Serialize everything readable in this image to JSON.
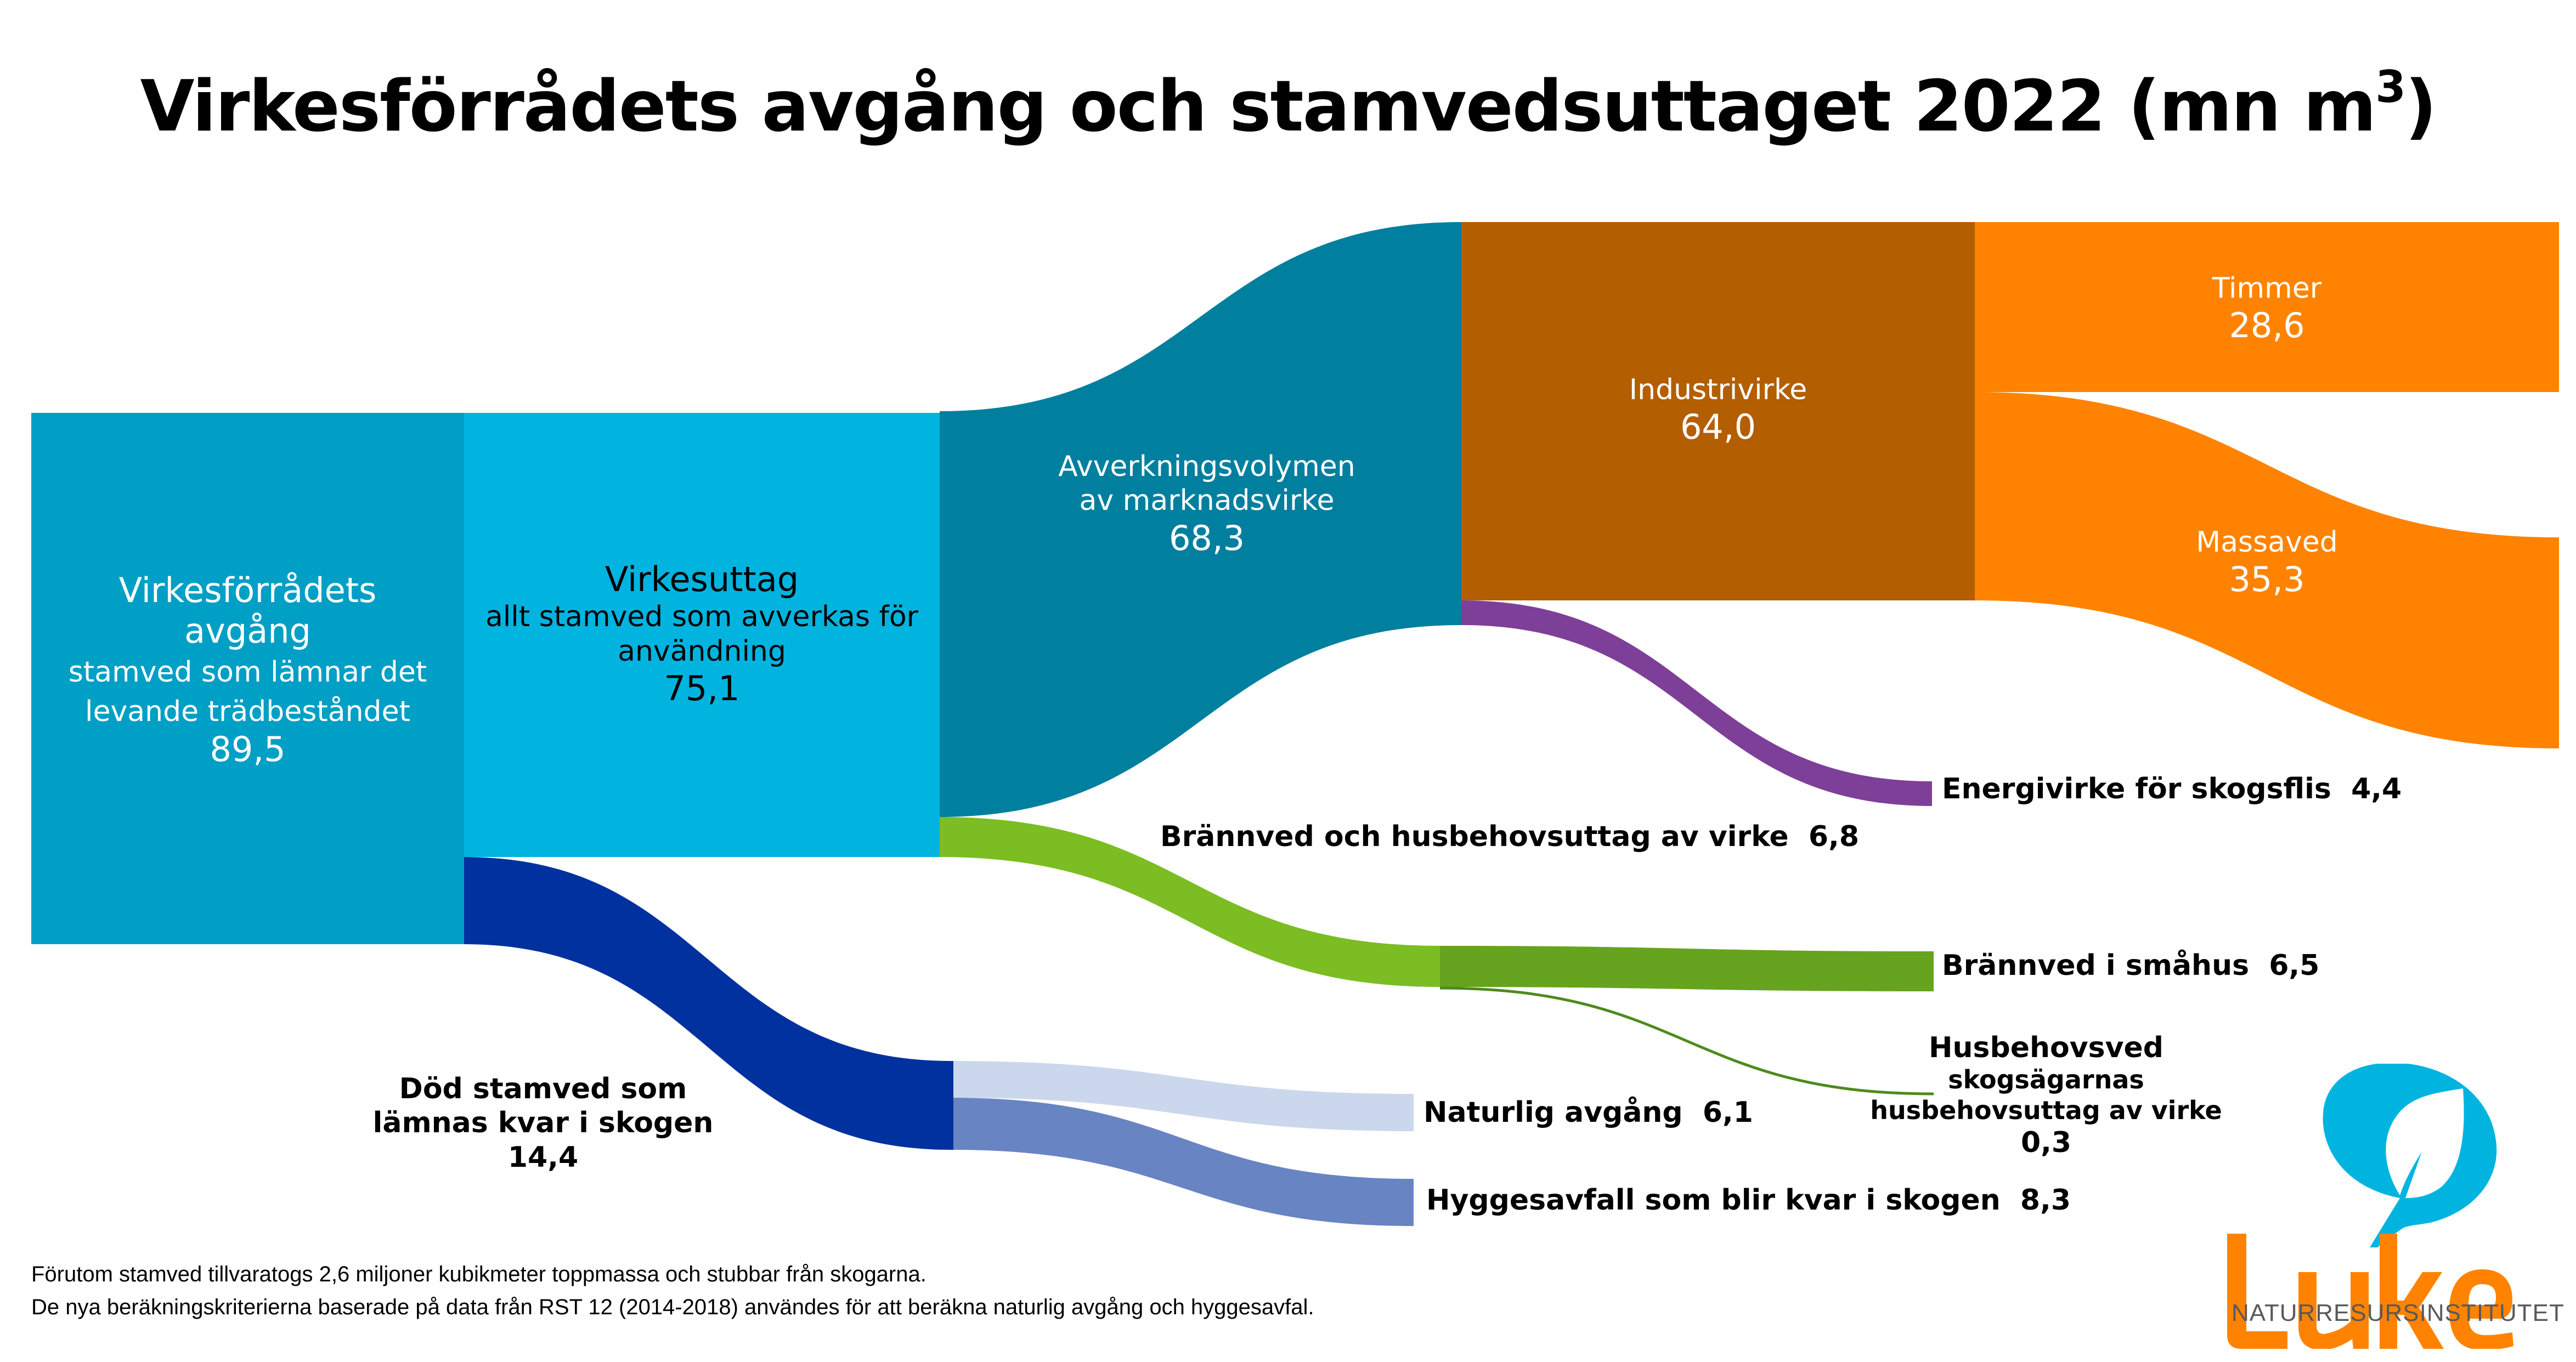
{
  "title": {
    "text": "Virkesförrådets avgång och stamvedsuttaget 2022 (mn m",
    "superscript": "3",
    "closing": ")"
  },
  "chart_data": {
    "type": "sankey",
    "title": "Virkesförrådets avgång och stamvedsuttaget 2022 (mn m³)",
    "unit": "mn m³",
    "nodes": [
      {
        "id": "avgang",
        "label": "Virkesförrådets avgång",
        "sublabel": "stamved som lämnar det levande trädbeståndet",
        "value": 89.5,
        "value_text": "89,5",
        "color": "#009FC6"
      },
      {
        "id": "virkesuttag",
        "label": "Virkesuttag",
        "sublabel": "allt stamved som avverkas för användning",
        "value": 75.1,
        "value_text": "75,1",
        "color": "#00B4E0"
      },
      {
        "id": "avverkning",
        "label": "Avverkningsvolymen av marknadsvirke",
        "value": 68.3,
        "value_text": "68,3",
        "color": "#007F9E"
      },
      {
        "id": "industrivirke",
        "label": "Industrivirke",
        "value": 64.0,
        "value_text": "64,0",
        "color": "#B35E00"
      },
      {
        "id": "timmer",
        "label": "Timmer",
        "value": 28.6,
        "value_text": "28,6",
        "color": "#FF8300"
      },
      {
        "id": "massaved",
        "label": "Massaved",
        "value": 35.3,
        "value_text": "35,3",
        "color": "#FF8300"
      },
      {
        "id": "energivirke",
        "label": "Energivirke för skogsflis",
        "value": 4.4,
        "value_text": "4,4",
        "color": "#7E3F98"
      },
      {
        "id": "brannved_hus",
        "label": "Brännved och husbehovsuttag av virke",
        "value": 6.8,
        "value_text": "6,8",
        "color": "#7BBD22"
      },
      {
        "id": "brannved_smahus",
        "label": "Brännved i småhus",
        "value": 6.5,
        "value_text": "6,5",
        "color": "#66A31E"
      },
      {
        "id": "husbehovsved",
        "label": "Husbehovsved",
        "sublabel": "skogsägarnas husbehovsuttag av virke",
        "value": 0.3,
        "value_text": "0,3",
        "color": "#4E8A1C"
      },
      {
        "id": "dod_stamved",
        "label": "Död stamved som lämnas kvar i skogen",
        "value": 14.4,
        "value_text": "14,4",
        "color": "#00319E"
      },
      {
        "id": "naturlig",
        "label": "Naturlig avgång",
        "value": 6.1,
        "value_text": "6,1",
        "color": "#CBD7ED"
      },
      {
        "id": "hyggesavfall",
        "label": "Hyggesavfall som blir kvar i skogen",
        "value": 8.3,
        "value_text": "8,3",
        "color": "#6984C3"
      }
    ],
    "links": [
      {
        "source": "avgang",
        "target": "virkesuttag",
        "value": 75.1
      },
      {
        "source": "avgang",
        "target": "dod_stamved",
        "value": 14.4
      },
      {
        "source": "virkesuttag",
        "target": "avverkning",
        "value": 68.3
      },
      {
        "source": "virkesuttag",
        "target": "brannved_hus",
        "value": 6.8
      },
      {
        "source": "avverkning",
        "target": "industrivirke",
        "value": 64.0
      },
      {
        "source": "avverkning",
        "target": "energivirke",
        "value": 4.4
      },
      {
        "source": "industrivirke",
        "target": "timmer",
        "value": 28.6
      },
      {
        "source": "industrivirke",
        "target": "massaved",
        "value": 35.3
      },
      {
        "source": "brannved_hus",
        "target": "brannved_smahus",
        "value": 6.5
      },
      {
        "source": "brannved_hus",
        "target": "husbehovsved",
        "value": 0.3
      },
      {
        "source": "dod_stamved",
        "target": "naturlig",
        "value": 6.1
      },
      {
        "source": "dod_stamved",
        "target": "hyggesavfall",
        "value": 8.3
      }
    ]
  },
  "labels": {
    "avgang": {
      "l1": "Virkesförrådets",
      "l2": "avgång",
      "l3": "stamved som lämnar det",
      "l4": "levande trädbeståndet",
      "value": "89,5"
    },
    "virkesuttag": {
      "l1": "Virkesuttag",
      "l2": "allt stamved som avverkas för",
      "l3": "användning",
      "value": "75,1"
    },
    "avverkning": {
      "l1": "Avverkningsvolymen",
      "l2": "av marknadsvirke",
      "value": "68,3"
    },
    "industrivirke": {
      "l1": "Industrivirke",
      "value": "64,0"
    },
    "timmer": {
      "l1": "Timmer",
      "value": "28,6"
    },
    "massaved": {
      "l1": "Massaved",
      "value": "35,3"
    },
    "energivirke": {
      "text": "Energivirke för skogsflis  4,4"
    },
    "brannved_hus": {
      "text": "Brännved och husbehovsuttag av virke  6,8"
    },
    "brannved_smahus": {
      "text": "Brännved i småhus  6,5"
    },
    "husbehovsved": {
      "l1": "Husbehovsved",
      "l2": "skogsägarnas",
      "l3": "husbehovsuttag av virke",
      "value": "0,3"
    },
    "dod_stamved": {
      "l1": "Död stamved som",
      "l2": "lämnas kvar i skogen",
      "value": "14,4"
    },
    "naturlig": {
      "text": "Naturlig avgång  6,1"
    },
    "hyggesavfall": {
      "text": "Hyggesavfall som blir kvar i skogen  8,3"
    }
  },
  "footnotes": [
    "Förutom stamved tillvaratogs 2,6 miljoner kubikmeter toppmassa och stubbar från skogarna.",
    "De nya beräkningskriterierna baserade på data från RST 12 (2014-2018) användes för att beräkna naturlig avgång och hyggesavfal."
  ],
  "logo": {
    "name": "Luke",
    "subtitle": "NATURRESURSINSTITUTET",
    "orange": "#FF8300",
    "blue": "#00B4E0"
  }
}
